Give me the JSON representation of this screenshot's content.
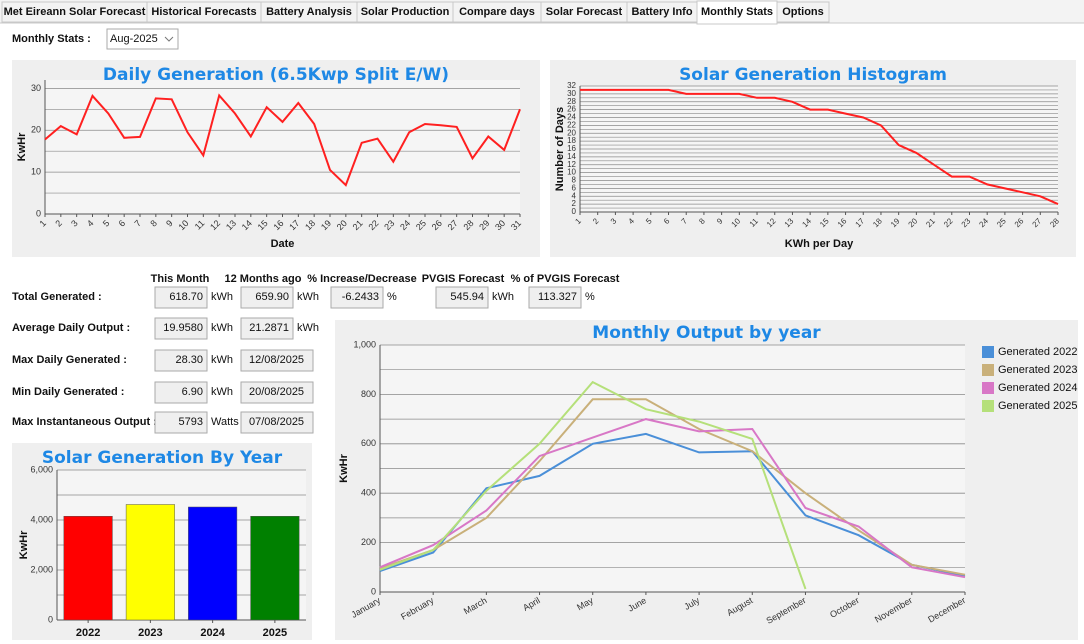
{
  "tabs": [
    "Met Eireann Solar Forecast",
    "Historical Forecasts",
    "Battery Analysis",
    "Solar Production",
    "Compare days",
    "Solar Forecast",
    "Battery Info",
    "Monthly Stats",
    "Options"
  ],
  "selector": {
    "label": "Monthly Stats :",
    "value": "Aug-2025"
  },
  "stats": {
    "headers": [
      "This Month",
      "12 Months ago",
      "% Increase/Decrease",
      "PVGIS Forecast",
      "% of PVGIS Forecast"
    ],
    "rows": [
      {
        "label": "Total Generated :",
        "cells": [
          {
            "value": "618.70",
            "unit": "kWh"
          },
          {
            "value": "659.90",
            "unit": "kWh"
          },
          {
            "value": "-6.2433",
            "unit": "%"
          },
          {
            "value": "545.94",
            "unit": "kWh"
          },
          {
            "value": "113.327",
            "unit": "%"
          }
        ]
      },
      {
        "label": "Average Daily Output :",
        "cells": [
          {
            "value": "19.9580",
            "unit": "kWh"
          },
          {
            "value": "21.2871",
            "unit": "kWh"
          }
        ]
      },
      {
        "label": "Max Daily Generated :",
        "cells": [
          {
            "value": "28.30",
            "unit": "kWh"
          },
          {
            "value": "12/08/2025"
          }
        ]
      },
      {
        "label": "Min Daily Generated :",
        "cells": [
          {
            "value": "6.90",
            "unit": "kWh"
          },
          {
            "value": "20/08/2025"
          }
        ]
      },
      {
        "label": "Max Instantaneous Output :",
        "cells": [
          {
            "value": "5793",
            "unit": "Watts"
          },
          {
            "value": "07/08/2025"
          }
        ]
      }
    ]
  },
  "chart_data": [
    {
      "type": "line",
      "title": "Daily Generation (6.5Kwp Split E/W)",
      "xlabel": "Date",
      "ylabel": "KwHr",
      "categories": [
        "1",
        "2",
        "3",
        "4",
        "5",
        "6",
        "7",
        "8",
        "9",
        "10",
        "11",
        "12",
        "13",
        "14",
        "15",
        "16",
        "17",
        "18",
        "19",
        "20",
        "21",
        "22",
        "23",
        "24",
        "25",
        "26",
        "27",
        "28",
        "29",
        "30",
        "31"
      ],
      "values": [
        17.8,
        21,
        19,
        28.2,
        24,
        18.2,
        18.4,
        27.6,
        27.4,
        19.5,
        14,
        28.3,
        24,
        18.5,
        25.5,
        22,
        26.5,
        21.5,
        10.5,
        6.9,
        17,
        18,
        12.5,
        19.5,
        21.5,
        21.2,
        20.8,
        13.3,
        18.5,
        15.3,
        25
      ],
      "color": "#ff2020",
      "ylim": [
        0,
        32
      ],
      "yticks": [
        0,
        10,
        20,
        30
      ],
      "minor_yticks": [
        5,
        15,
        25
      ],
      "grid": true
    },
    {
      "type": "line",
      "title": "Solar Generation Histogram",
      "xlabel": "KWh per Day",
      "ylabel": "Number of Days",
      "categories": [
        "1",
        "2",
        "3",
        "4",
        "5",
        "6",
        "7",
        "8",
        "9",
        "10",
        "11",
        "12",
        "13",
        "14",
        "15",
        "16",
        "17",
        "18",
        "19",
        "20",
        "21",
        "22",
        "23",
        "24",
        "25",
        "26",
        "27",
        "28"
      ],
      "values": [
        31,
        31,
        31,
        31,
        31,
        31,
        30,
        30,
        30,
        30,
        29,
        29,
        28,
        26,
        26,
        25,
        24,
        22,
        17,
        15,
        12,
        9,
        9,
        7,
        6,
        5,
        4,
        2
      ],
      "color": "#ff2020",
      "ylim": [
        0,
        32
      ],
      "yticks": [
        0,
        2,
        4,
        6,
        8,
        10,
        12,
        14,
        16,
        18,
        20,
        22,
        24,
        26,
        28,
        30,
        32
      ],
      "minor_yticks": [
        1,
        3,
        5,
        7,
        9,
        11,
        13,
        15,
        17,
        19,
        21,
        23,
        25,
        27,
        29,
        31
      ],
      "grid": true
    },
    {
      "type": "bar",
      "title": "Solar Generation By Year",
      "ylabel": "KwHr",
      "categories": [
        "2022",
        "2023",
        "2024",
        "2025"
      ],
      "values": [
        4150,
        4620,
        4520,
        4150
      ],
      "colors": [
        "#ff0000",
        "#ffff00",
        "#0000ff",
        "#008000"
      ],
      "ylim": [
        0,
        6000
      ],
      "yticks": [
        0,
        {
          "value": 2000,
          "label": "2,000"
        },
        {
          "value": 4000,
          "label": "4,000"
        },
        {
          "value": 6000,
          "label": "6,000"
        }
      ],
      "minor_yticks": [
        1000,
        3000,
        5000
      ],
      "grid": true
    },
    {
      "type": "line",
      "title": "Monthly Output by year",
      "ylabel": "KwHr",
      "categories": [
        "January",
        "February",
        "March",
        "April",
        "May",
        "June",
        "July",
        "August",
        "September",
        "October",
        "November",
        "December"
      ],
      "series": [
        {
          "name": "Generated 2022",
          "color": "#4a8fd8",
          "values": [
            85,
            160,
            420,
            470,
            600,
            640,
            565,
            570,
            310,
            230,
            110,
            65
          ]
        },
        {
          "name": "Generated 2023",
          "color": "#c9b07a",
          "values": [
            95,
            170,
            300,
            530,
            780,
            780,
            660,
            570,
            400,
            250,
            110,
            70
          ]
        },
        {
          "name": "Generated 2024",
          "color": "#d877c6",
          "values": [
            100,
            190,
            330,
            550,
            625,
            700,
            650,
            660,
            340,
            265,
            100,
            60
          ]
        },
        {
          "name": "Generated 2025",
          "color": "#b5e07a",
          "values": [
            90,
            170,
            410,
            600,
            850,
            740,
            690,
            620,
            12,
            null,
            null,
            null
          ]
        }
      ],
      "ylim": [
        0,
        1000
      ],
      "yticks": [
        0,
        200,
        400,
        600,
        800,
        {
          "value": 1000,
          "label": "1,000"
        }
      ],
      "minor_yticks": [
        100,
        300,
        500,
        700,
        900
      ],
      "grid": true,
      "legend": "top-right"
    }
  ]
}
